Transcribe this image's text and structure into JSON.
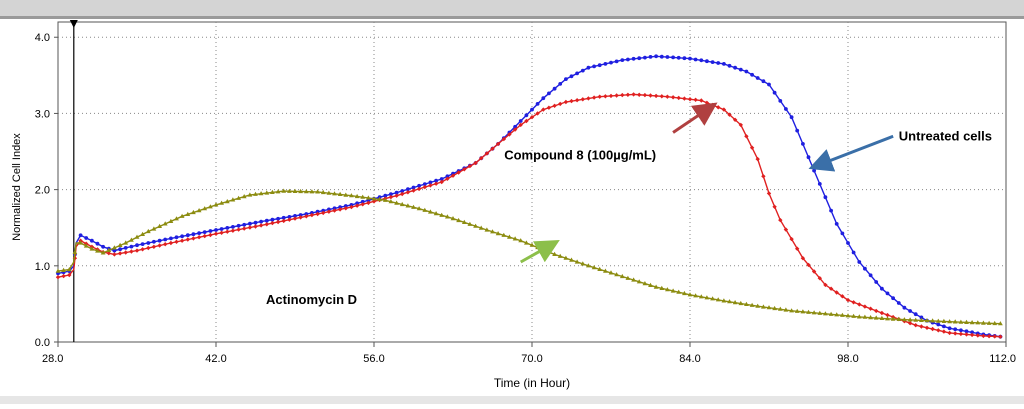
{
  "chart_data": {
    "type": "line",
    "title": "",
    "xlabel": "Time (in Hour)",
    "ylabel": "Normalized Cell Index",
    "xlim": [
      28,
      112
    ],
    "ylim": [
      0,
      4.2
    ],
    "x_ticks": [
      28,
      42,
      56,
      70,
      84,
      98,
      112
    ],
    "x_tick_labels": [
      "28.0",
      "42.0",
      "56.0",
      "70.0",
      "84.0",
      "98.0",
      "112.0"
    ],
    "y_ticks": [
      0,
      1,
      2,
      3,
      4
    ],
    "y_tick_labels": [
      "0.0",
      "1.0",
      "2.0",
      "3.0",
      "4.0"
    ],
    "grid": true,
    "marker_x": 29.4,
    "series": [
      {
        "name": "Untreated cells",
        "color": "#1f1fe0",
        "marker": "circle",
        "points": [
          [
            28,
            0.9
          ],
          [
            29,
            0.93
          ],
          [
            29.4,
            1.0
          ],
          [
            29.6,
            1.3
          ],
          [
            30,
            1.4
          ],
          [
            31,
            1.33
          ],
          [
            32,
            1.25
          ],
          [
            33,
            1.2
          ],
          [
            35,
            1.27
          ],
          [
            38,
            1.36
          ],
          [
            42,
            1.47
          ],
          [
            46,
            1.58
          ],
          [
            50,
            1.68
          ],
          [
            54,
            1.8
          ],
          [
            58,
            1.96
          ],
          [
            62,
            2.14
          ],
          [
            65,
            2.35
          ],
          [
            67,
            2.6
          ],
          [
            69,
            2.9
          ],
          [
            71,
            3.2
          ],
          [
            73,
            3.45
          ],
          [
            75,
            3.6
          ],
          [
            78,
            3.7
          ],
          [
            81,
            3.75
          ],
          [
            84,
            3.72
          ],
          [
            87,
            3.65
          ],
          [
            89,
            3.55
          ],
          [
            91,
            3.38
          ],
          [
            93,
            2.95
          ],
          [
            95,
            2.25
          ],
          [
            97,
            1.55
          ],
          [
            99,
            1.05
          ],
          [
            101,
            0.7
          ],
          [
            103,
            0.45
          ],
          [
            105,
            0.28
          ],
          [
            107,
            0.18
          ],
          [
            110,
            0.1
          ],
          [
            111.5,
            0.07
          ]
        ]
      },
      {
        "name": "Compound  8 (100µg/mL)",
        "color": "#e02020",
        "marker": "diamond",
        "points": [
          [
            28,
            0.85
          ],
          [
            29,
            0.88
          ],
          [
            29.4,
            0.95
          ],
          [
            29.6,
            1.25
          ],
          [
            30,
            1.33
          ],
          [
            31,
            1.25
          ],
          [
            32,
            1.18
          ],
          [
            33,
            1.15
          ],
          [
            35,
            1.2
          ],
          [
            38,
            1.3
          ],
          [
            42,
            1.42
          ],
          [
            46,
            1.53
          ],
          [
            50,
            1.65
          ],
          [
            54,
            1.77
          ],
          [
            58,
            1.92
          ],
          [
            62,
            2.1
          ],
          [
            65,
            2.35
          ],
          [
            67,
            2.6
          ],
          [
            69,
            2.85
          ],
          [
            71,
            3.05
          ],
          [
            73,
            3.15
          ],
          [
            76,
            3.22
          ],
          [
            79,
            3.25
          ],
          [
            82,
            3.22
          ],
          [
            85,
            3.17
          ],
          [
            87,
            3.05
          ],
          [
            88.5,
            2.85
          ],
          [
            90,
            2.4
          ],
          [
            91,
            1.95
          ],
          [
            92,
            1.6
          ],
          [
            94,
            1.1
          ],
          [
            96,
            0.75
          ],
          [
            98,
            0.55
          ],
          [
            101,
            0.38
          ],
          [
            104,
            0.22
          ],
          [
            107,
            0.12
          ],
          [
            110,
            0.08
          ],
          [
            111.5,
            0.07
          ]
        ]
      },
      {
        "name": "Actinomycin D",
        "color": "#8c8c10",
        "marker": "triangle",
        "points": [
          [
            28,
            0.93
          ],
          [
            29,
            0.95
          ],
          [
            29.4,
            1.05
          ],
          [
            29.6,
            1.3
          ],
          [
            30,
            1.3
          ],
          [
            31,
            1.22
          ],
          [
            32,
            1.17
          ],
          [
            34,
            1.3
          ],
          [
            36,
            1.45
          ],
          [
            39,
            1.65
          ],
          [
            42,
            1.8
          ],
          [
            45,
            1.93
          ],
          [
            48,
            1.98
          ],
          [
            51,
            1.97
          ],
          [
            54,
            1.92
          ],
          [
            57,
            1.86
          ],
          [
            60,
            1.75
          ],
          [
            63,
            1.62
          ],
          [
            66,
            1.47
          ],
          [
            69,
            1.33
          ],
          [
            72,
            1.15
          ],
          [
            75,
            1.0
          ],
          [
            78,
            0.86
          ],
          [
            81,
            0.72
          ],
          [
            84,
            0.62
          ],
          [
            87,
            0.54
          ],
          [
            90,
            0.47
          ],
          [
            93,
            0.41
          ],
          [
            96,
            0.37
          ],
          [
            99,
            0.33
          ],
          [
            102,
            0.3
          ],
          [
            105,
            0.28
          ],
          [
            108,
            0.26
          ],
          [
            111.5,
            0.24
          ]
        ]
      }
    ],
    "annotations": [
      {
        "label": "Untreated cells",
        "color": "#3a6fa8",
        "from": [
          102,
          2.7
        ],
        "to": [
          95,
          2.3
        ]
      },
      {
        "label": "Compound  8 (100µg/mL)",
        "color": "#b04040",
        "from": [
          82.5,
          2.75
        ],
        "to": [
          86,
          3.1
        ]
      },
      {
        "label": "Actinomycin D",
        "color": "#8cbf4a",
        "from": [
          69,
          1.05
        ],
        "to": [
          72,
          1.3
        ]
      }
    ]
  }
}
